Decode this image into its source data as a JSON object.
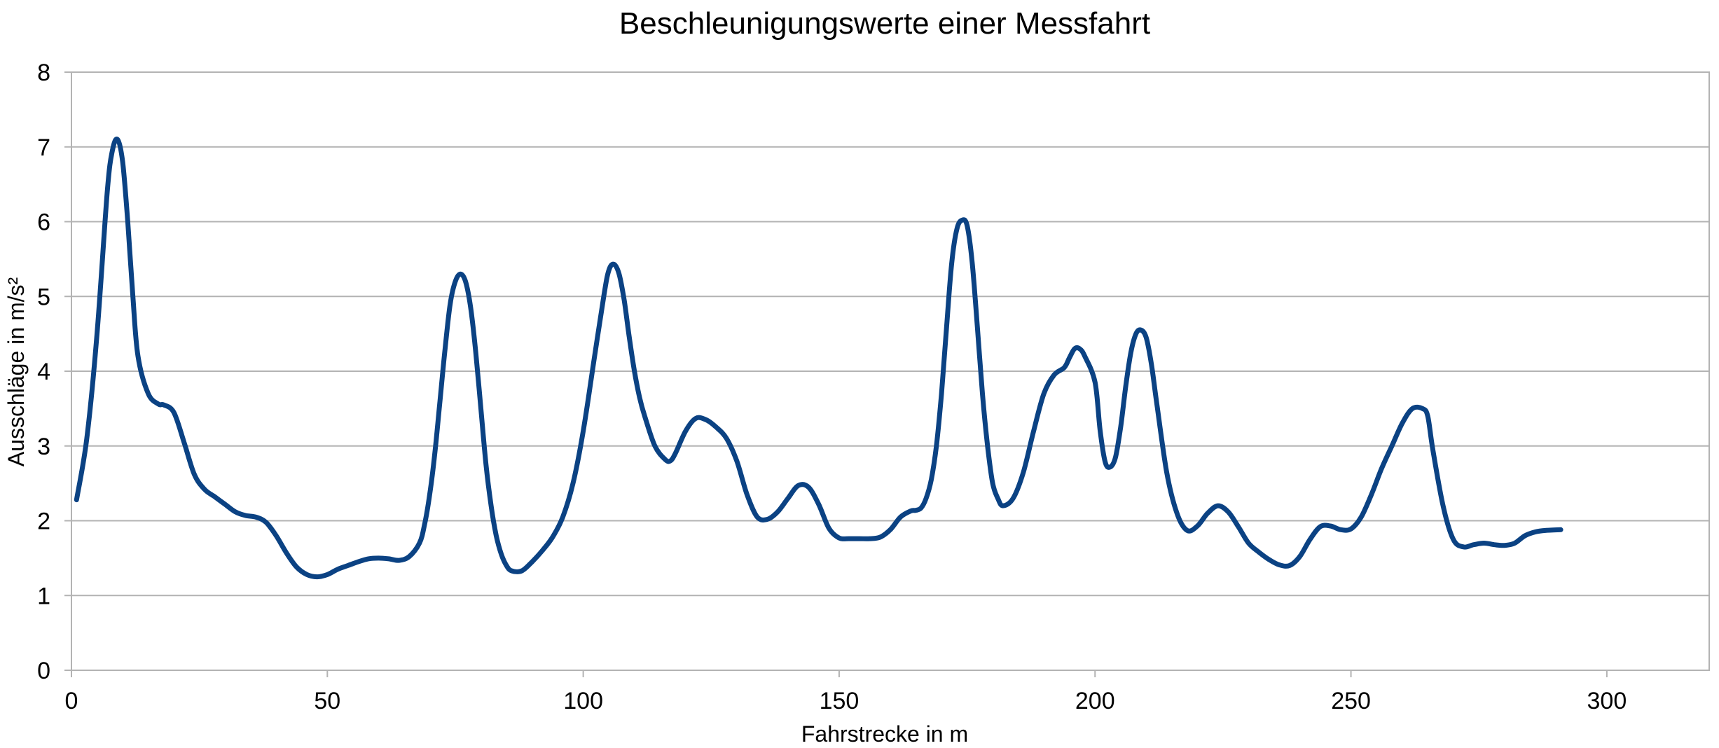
{
  "chart_data": {
    "type": "line",
    "title": "Beschleunigungswerte einer Messfahrt",
    "xlabel": "Fahrstrecke in m",
    "ylabel": "Ausschläge in m/s²",
    "xlim": [
      0,
      320
    ],
    "ylim": [
      0,
      8
    ],
    "x_ticks": [
      "0",
      "50",
      "100",
      "150",
      "200",
      "250",
      "300"
    ],
    "y_ticks": [
      "0",
      "1",
      "2",
      "3",
      "4",
      "5",
      "6",
      "7",
      "8"
    ],
    "grid": true,
    "legend": "none",
    "line_color": "#0b4283",
    "grid_color": "#b3b3b3",
    "series": [
      {
        "x": [
          1,
          3,
          5,
          7,
          8,
          9,
          10,
          11,
          12,
          13,
          15,
          17,
          18,
          20,
          22,
          24,
          26,
          28,
          30,
          32,
          34,
          36,
          38,
          40,
          42,
          44,
          46,
          48,
          50,
          52,
          54,
          56,
          58,
          60,
          62,
          64,
          66,
          68,
          69,
          70,
          71,
          72,
          73,
          74,
          75,
          76,
          77,
          78,
          79,
          80,
          81,
          82,
          83,
          84,
          85,
          86,
          88,
          90,
          92,
          94,
          96,
          98,
          100,
          102,
          104,
          105,
          106,
          107,
          108,
          109,
          110,
          111,
          112,
          114,
          116,
          117,
          118,
          120,
          122,
          124,
          126,
          128,
          130,
          132,
          134,
          136,
          138,
          140,
          142,
          144,
          146,
          148,
          150,
          152,
          154,
          156,
          158,
          160,
          162,
          164,
          165,
          166,
          167,
          168,
          169,
          170,
          171,
          172,
          173,
          174,
          175,
          176,
          177,
          178,
          179,
          180,
          181,
          182,
          184,
          186,
          188,
          190,
          192,
          194,
          195,
          196,
          197,
          198,
          200,
          201,
          202,
          203,
          204,
          205,
          206,
          207,
          208,
          209,
          210,
          211,
          212,
          214,
          216,
          218,
          220,
          222,
          224,
          226,
          228,
          230,
          232,
          234,
          236,
          238,
          240,
          242,
          244,
          246,
          248,
          250,
          252,
          254,
          256,
          258,
          260,
          262,
          264,
          265,
          266,
          268,
          270,
          272,
          274,
          276,
          278,
          280,
          282,
          284,
          286,
          288,
          291
        ],
        "y": [
          2.28,
          3.1,
          4.5,
          6.4,
          6.95,
          7.1,
          6.8,
          6.0,
          5.0,
          4.2,
          3.7,
          3.56,
          3.55,
          3.45,
          3.05,
          2.62,
          2.42,
          2.32,
          2.22,
          2.12,
          2.07,
          2.05,
          1.98,
          1.8,
          1.57,
          1.38,
          1.28,
          1.25,
          1.28,
          1.35,
          1.4,
          1.45,
          1.49,
          1.5,
          1.49,
          1.47,
          1.52,
          1.7,
          1.95,
          2.35,
          2.9,
          3.6,
          4.3,
          4.9,
          5.2,
          5.3,
          5.2,
          4.85,
          4.25,
          3.5,
          2.75,
          2.2,
          1.8,
          1.55,
          1.4,
          1.33,
          1.33,
          1.45,
          1.6,
          1.78,
          2.05,
          2.5,
          3.2,
          4.1,
          5.0,
          5.35,
          5.43,
          5.3,
          4.95,
          4.45,
          4.0,
          3.65,
          3.4,
          3.0,
          2.82,
          2.8,
          2.9,
          3.2,
          3.37,
          3.35,
          3.25,
          3.1,
          2.8,
          2.35,
          2.05,
          2.02,
          2.12,
          2.3,
          2.47,
          2.45,
          2.22,
          1.9,
          1.77,
          1.76,
          1.76,
          1.76,
          1.78,
          1.88,
          2.05,
          2.13,
          2.14,
          2.17,
          2.3,
          2.55,
          3.0,
          3.7,
          4.6,
          5.45,
          5.9,
          6.02,
          5.95,
          5.45,
          4.6,
          3.7,
          3.0,
          2.5,
          2.3,
          2.2,
          2.3,
          2.65,
          3.2,
          3.7,
          3.95,
          4.05,
          4.18,
          4.3,
          4.3,
          4.2,
          3.85,
          3.2,
          2.78,
          2.72,
          2.85,
          3.25,
          3.8,
          4.25,
          4.5,
          4.55,
          4.45,
          4.1,
          3.6,
          2.65,
          2.1,
          1.87,
          1.93,
          2.1,
          2.2,
          2.12,
          1.92,
          1.7,
          1.58,
          1.48,
          1.41,
          1.4,
          1.52,
          1.75,
          1.92,
          1.93,
          1.88,
          1.89,
          2.05,
          2.35,
          2.7,
          3.0,
          3.3,
          3.5,
          3.5,
          3.4,
          2.95,
          2.2,
          1.75,
          1.65,
          1.68,
          1.7,
          1.68,
          1.67,
          1.7,
          1.8,
          1.85,
          1.87,
          1.88
        ]
      }
    ]
  }
}
